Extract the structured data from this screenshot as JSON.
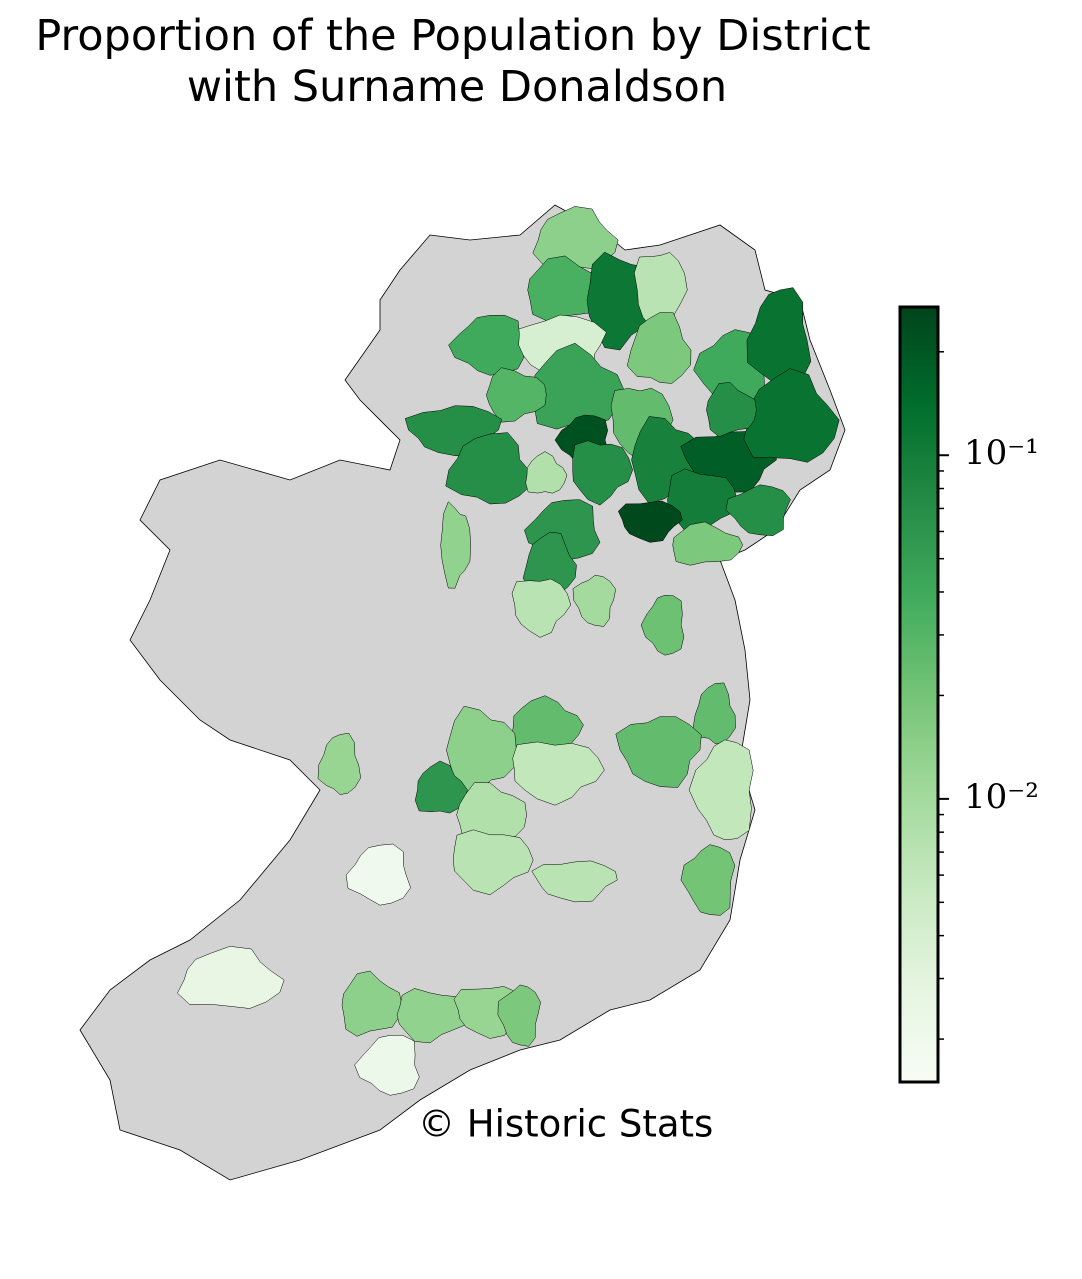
{
  "chart_data": {
    "type": "choropleth",
    "title": [
      "Proportion of the Population by District",
      "with Surname Donaldson"
    ],
    "annotation": "© Historic Stats",
    "values": [
      0.014,
      0.035,
      0.11,
      0.007,
      0.004,
      0.04,
      0.018,
      0.045,
      0.03,
      0.025,
      0.07,
      0.22,
      0.07,
      0.008,
      0.09,
      0.07,
      0.18,
      0.04,
      0.12,
      0.12,
      0.07,
      0.1,
      0.25,
      0.07,
      0.06,
      0.06,
      0.018,
      0.013,
      0.007,
      0.01,
      0.022,
      0.025,
      0.025,
      0.014,
      0.006,
      0.025,
      0.006,
      0.012,
      0.06,
      0.008,
      0.007,
      0.007,
      0.02,
      0.0019,
      0.0025,
      0.014,
      0.013,
      0.012,
      0.018,
      0.0022
    ],
    "clim": [
      0.0015,
      0.27
    ],
    "log_scale": true,
    "ticks": [
      {
        "value": 0.1,
        "label": "10⁻¹"
      },
      {
        "value": 0.01,
        "label": "10⁻²"
      }
    ],
    "minor_ticks": [
      0.002,
      0.003,
      0.004,
      0.005,
      0.006,
      0.007,
      0.008,
      0.009,
      0.02,
      0.03,
      0.04,
      0.05,
      0.06,
      0.07,
      0.08,
      0.09,
      0.2
    ],
    "colormap": [
      "#f7fcf5",
      "#e5f5e0",
      "#c7e9c0",
      "#a1d99b",
      "#74c476",
      "#41ab5d",
      "#238b45",
      "#006d2c",
      "#00441b"
    ],
    "missing_color": "#d3d3d3"
  }
}
